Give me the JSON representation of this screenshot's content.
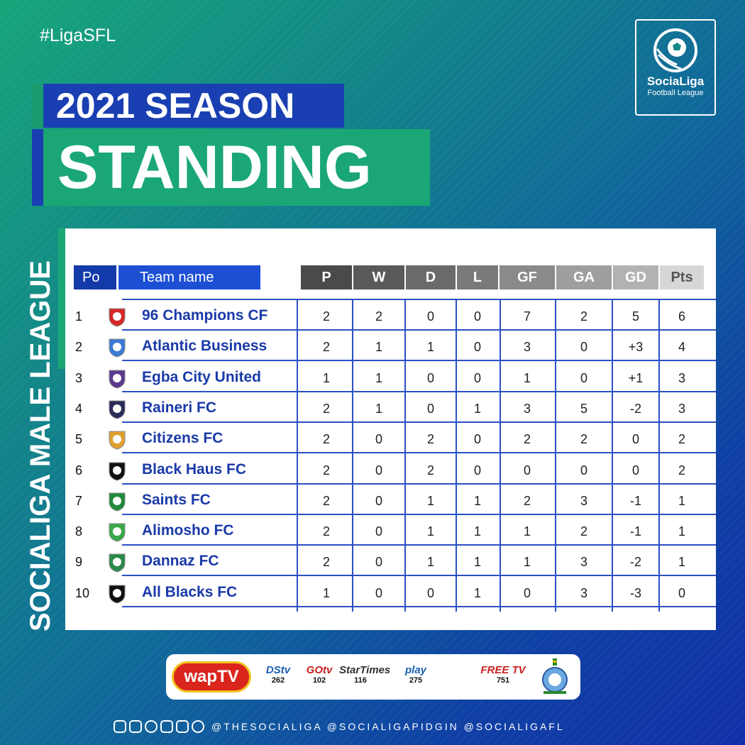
{
  "hashtag": "#LigaSFL",
  "logo": {
    "line1": "SociaLiga",
    "line2": "Football League"
  },
  "title": {
    "line1": "2021 SEASON",
    "line2": "STANDING"
  },
  "side_label": "SOCIALIGA MALE LEAGUE",
  "table": {
    "headers": {
      "po": "Po",
      "team": "Team name",
      "stats": [
        "P",
        "W",
        "D",
        "L",
        "GF",
        "GA",
        "GD",
        "Pts"
      ]
    },
    "header_colors": [
      "#4a4a4a",
      "#5a5a5a",
      "#6a6a6a",
      "#7a7a7a",
      "#8a8a8a",
      "#9e9e9e",
      "#b2b2b2",
      "#d6d6d6"
    ],
    "rows": [
      {
        "pos": "1",
        "team": "96 Champions CF",
        "crest": "champions-crest",
        "stats": [
          "2",
          "2",
          "0",
          "0",
          "7",
          "2",
          "5",
          "6"
        ]
      },
      {
        "pos": "2",
        "team": "Atlantic Business",
        "crest": "atlantic-crest",
        "stats": [
          "2",
          "1",
          "1",
          "0",
          "3",
          "0",
          "+3",
          "4"
        ]
      },
      {
        "pos": "3",
        "team": "Egba City United",
        "crest": "egba-crest",
        "stats": [
          "1",
          "1",
          "0",
          "0",
          "1",
          "0",
          "+1",
          "3"
        ]
      },
      {
        "pos": "4",
        "team": "Raineri FC",
        "crest": "raineri-crest",
        "stats": [
          "2",
          "1",
          "0",
          "1",
          "3",
          "5",
          "-2",
          "3"
        ]
      },
      {
        "pos": "5",
        "team": "Citizens FC",
        "crest": "citizens-crest",
        "stats": [
          "2",
          "0",
          "2",
          "0",
          "2",
          "2",
          "0",
          "2"
        ]
      },
      {
        "pos": "6",
        "team": "Black Haus FC",
        "crest": "blackhaus-crest",
        "stats": [
          "2",
          "0",
          "2",
          "0",
          "0",
          "0",
          "0",
          "2"
        ]
      },
      {
        "pos": "7",
        "team": "Saints FC",
        "crest": "saints-crest",
        "stats": [
          "2",
          "0",
          "1",
          "1",
          "2",
          "3",
          "-1",
          "1"
        ]
      },
      {
        "pos": "8",
        "team": "Alimosho FC",
        "crest": "alimosho-crest",
        "stats": [
          "2",
          "0",
          "1",
          "1",
          "1",
          "2",
          "-1",
          "1"
        ]
      },
      {
        "pos": "9",
        "team": "Dannaz FC",
        "crest": "dannaz-crest",
        "stats": [
          "2",
          "0",
          "1",
          "1",
          "1",
          "3",
          "-2",
          "1"
        ]
      },
      {
        "pos": "10",
        "team": "All Blacks FC",
        "crest": "allblacks-crest",
        "stats": [
          "1",
          "0",
          "0",
          "1",
          "0",
          "3",
          "-3",
          "0"
        ]
      }
    ]
  },
  "sponsors": {
    "wap": "wapTV",
    "channels": [
      {
        "name": "DStv",
        "num": "262",
        "color": "#1a5fb4"
      },
      {
        "name": "GOtv",
        "num": "102",
        "color": "#c81e1e"
      },
      {
        "name": "StarTimes",
        "num": "116",
        "color": "#333333"
      },
      {
        "name": "play",
        "num": "275",
        "color": "#1a5fb4"
      },
      {
        "name": "FREE TV",
        "num": "751",
        "color": "#c81e1e"
      }
    ]
  },
  "social": {
    "handles": "@THESOCIALIGA @SOCIALIGAPIDGIN @SOCIALIGAFL"
  }
}
